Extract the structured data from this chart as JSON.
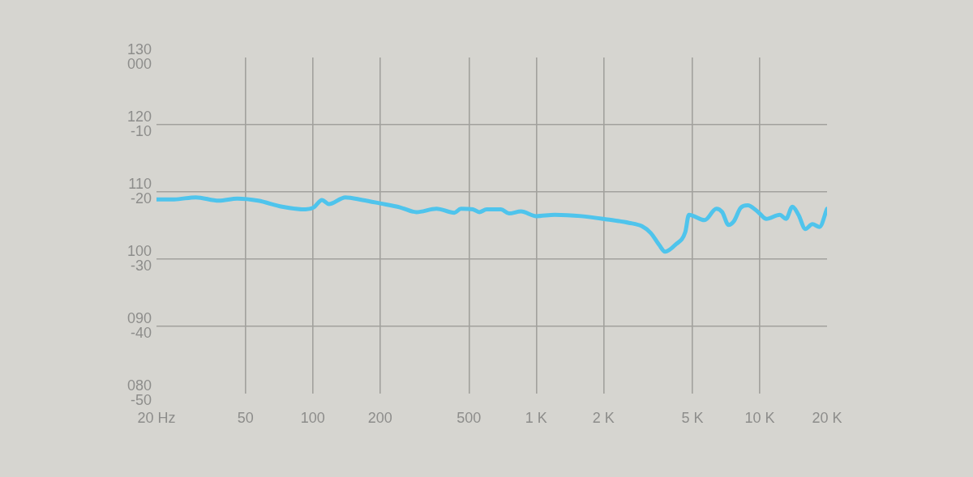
{
  "chart_data": {
    "type": "line",
    "x": [
      20,
      24,
      30,
      38,
      46,
      57,
      73,
      93,
      101,
      110,
      118,
      140,
      167,
      200,
      246,
      291,
      358,
      430,
      460,
      521,
      556,
      600,
      695,
      755,
      855,
      1000,
      1210,
      1590,
      2080,
      2600,
      2970,
      3250,
      3550,
      3770,
      4210,
      4640,
      4820,
      5660,
      6400,
      6790,
      7250,
      7680,
      8200,
      8830,
      9840,
      10700,
      12300,
      13100,
      14000,
      14900,
      16000,
      17200,
      18500,
      20000
    ],
    "series": [
      {
        "color": "#4fc4ec",
        "values": [
          108.9,
          108.9,
          109.2,
          108.7,
          109.0,
          108.7,
          107.8,
          107.4,
          107.7,
          108.8,
          108.2,
          109.2,
          108.8,
          108.3,
          107.7,
          107.0,
          107.5,
          106.9,
          107.5,
          107.4,
          107.0,
          107.4,
          107.4,
          106.8,
          107.1,
          106.4,
          106.6,
          106.4,
          105.9,
          105.4,
          104.9,
          103.9,
          102.1,
          101.1,
          102.2,
          104.0,
          106.6,
          105.8,
          107.5,
          107.0,
          105.1,
          105.7,
          107.6,
          108.0,
          107.0,
          106.0,
          106.6,
          106.0,
          107.8,
          106.6,
          104.5,
          105.2,
          104.8,
          107.5
        ]
      }
    ],
    "xlim": [
      20,
      20000
    ],
    "xticks": [
      {
        "value": 20,
        "label": "20 Hz"
      },
      50,
      100,
      200,
      500,
      {
        "value": 1000,
        "label": "1 K"
      },
      {
        "value": 2000,
        "label": "2 K"
      },
      {
        "value": 5000,
        "label": "5 K"
      },
      {
        "value": 10000,
        "label": "10 K"
      },
      {
        "value": 20000,
        "label": "20 K"
      }
    ],
    "ylim": [
      80,
      130
    ],
    "yticks": [
      130,
      120,
      110,
      100,
      {
        "value": 90,
        "label": "090"
      },
      {
        "value": 80,
        "label": "080"
      }
    ],
    "y2lim": [
      -50,
      0
    ],
    "y2ticks": [
      {
        "value": 0,
        "label": "000"
      },
      -10,
      -20,
      -30,
      -40,
      -50
    ],
    "log": "x",
    "grid": true,
    "marker": "none",
    "line_style": "solid"
  }
}
